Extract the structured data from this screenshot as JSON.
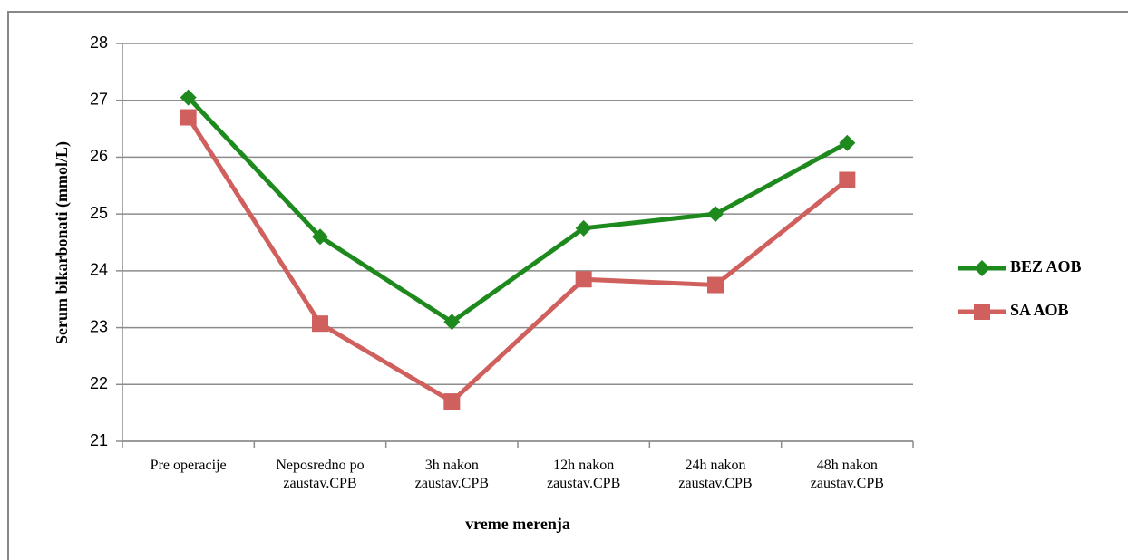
{
  "chart_data": {
    "type": "line",
    "x_label": "vreme merenja",
    "y_label": "Serum bikarbonati (mmol/L)",
    "categories": [
      "Pre operacije",
      "Neposredno po zaustav.CPB",
      "3h nakon zaustav.CPB",
      "12h nakon zaustav.CPB",
      "24h nakon zaustav.CPB",
      "48h nakon zaustav.CPB"
    ],
    "series": [
      {
        "name": "BEZ AOB",
        "color": "#1e8a1e",
        "marker": "diamond",
        "values": [
          27.05,
          24.6,
          23.1,
          24.75,
          25.0,
          26.25
        ]
      },
      {
        "name": "SA AOB",
        "color": "#d0605e",
        "marker": "square",
        "values": [
          26.7,
          23.07,
          21.7,
          23.85,
          23.75,
          25.6
        ]
      }
    ],
    "ylim": [
      21,
      28
    ],
    "yticks": [
      21,
      22,
      23,
      24,
      25,
      26,
      27,
      28
    ],
    "grid": true,
    "legend": "right"
  }
}
